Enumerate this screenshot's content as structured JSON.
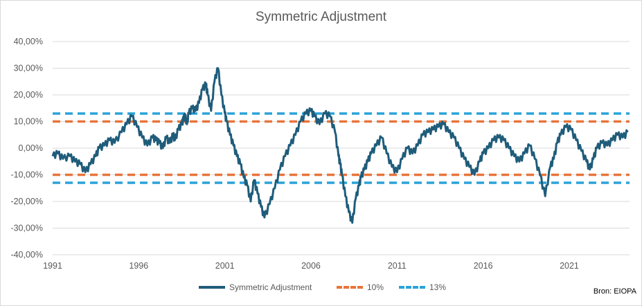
{
  "chart_data": {
    "type": "line",
    "title": "Symmetric Adjustment",
    "source": "Bron: EIOPA",
    "xlim": [
      1991,
      2024.5
    ],
    "ylim": [
      -40,
      40
    ],
    "y_tick_labels": [
      "40,00%",
      "30,00%",
      "20,00%",
      "10,00%",
      "0,00%",
      "-10,00%",
      "-20,00%",
      "-30,00%",
      "-40,00%"
    ],
    "y_ticks": [
      40,
      30,
      20,
      10,
      0,
      -10,
      -20,
      -30,
      -40
    ],
    "x_tick_labels": [
      "1991",
      "1996",
      "2001",
      "2006",
      "2011",
      "2016",
      "2021"
    ],
    "x_ticks": [
      1991,
      1996,
      2001,
      2006,
      2011,
      2016,
      2021
    ],
    "grid": true,
    "legend_position": "bottom",
    "series": [
      {
        "name": "Symmetric Adjustment",
        "color": "#1f5c7a",
        "style": "solid",
        "x": [
          1991.0,
          1991.3,
          1991.6,
          1992.0,
          1992.3,
          1992.6,
          1992.9,
          1993.2,
          1993.5,
          1993.7,
          1994.0,
          1994.3,
          1994.6,
          1995.0,
          1995.3,
          1995.6,
          1995.9,
          1996.2,
          1996.5,
          1996.8,
          1997.0,
          1997.2,
          1997.4,
          1997.6,
          1997.8,
          1998.0,
          1998.1,
          1998.3,
          1998.5,
          1998.6,
          1998.7,
          1998.8,
          1998.9,
          1999.1,
          1999.3,
          1999.5,
          1999.7,
          1999.9,
          2000.0,
          2000.2,
          2000.4,
          2000.6,
          2000.8,
          2001.0,
          2001.1,
          2001.3,
          2001.5,
          2001.7,
          2001.9,
          2002.1,
          2002.3,
          2002.5,
          2002.7,
          2002.9,
          2003.1,
          2003.3,
          2003.6,
          2003.9,
          2004.2,
          2004.5,
          2004.8,
          2005.1,
          2005.4,
          2005.7,
          2006.0,
          2006.2,
          2006.5,
          2006.8,
          2007.1,
          2007.4,
          2007.6,
          2007.7,
          2007.8,
          2008.0,
          2008.2,
          2008.4,
          2008.6,
          2008.8,
          2008.9,
          2009.1,
          2009.3,
          2009.5,
          2009.8,
          2010.1,
          2010.4,
          2010.7,
          2011.0,
          2011.3,
          2011.6,
          2011.9,
          2012.2,
          2012.5,
          2012.8,
          2013.1,
          2013.4,
          2013.7,
          2014.0,
          2014.3,
          2014.6,
          2014.9,
          2015.2,
          2015.5,
          2015.8,
          2016.0,
          2016.3,
          2016.6,
          2016.9,
          2017.2,
          2017.5,
          2017.8,
          2018.1,
          2018.4,
          2018.7,
          2019.0,
          2019.3,
          2019.6,
          2019.9,
          2020.1,
          2020.3,
          2020.5,
          2020.8,
          2021.1,
          2021.4,
          2021.7,
          2022.0,
          2022.2,
          2022.4,
          2022.6,
          2022.9,
          2023.2,
          2023.5,
          2023.8,
          2024.1,
          2024.4
        ],
        "y": [
          -3,
          -2,
          -4,
          -3,
          -5,
          -6,
          -9,
          -6,
          -3,
          0,
          1,
          3,
          2,
          6,
          9,
          12,
          8,
          4,
          1,
          4,
          3,
          2,
          0,
          4,
          2,
          5,
          3,
          7,
          9,
          11,
          12,
          9,
          13,
          15,
          14,
          17,
          22,
          24,
          20,
          14,
          25,
          30,
          20,
          13,
          10,
          5,
          1,
          -3,
          -6,
          -11,
          -14,
          -20,
          -12,
          -17,
          -22,
          -26,
          -21,
          -15,
          -8,
          -3,
          1,
          5,
          10,
          13,
          14,
          12,
          9,
          13,
          12,
          6,
          -3,
          -6,
          -10,
          -18,
          -24,
          -28,
          -19,
          -14,
          -11,
          -8,
          -5,
          -2,
          1,
          4,
          -2,
          -7,
          -9,
          -4,
          0,
          -2,
          1,
          5,
          6,
          7,
          8,
          9,
          6,
          4,
          0,
          -4,
          -7,
          -10,
          -5,
          -2,
          0,
          3,
          4,
          3,
          0,
          -3,
          -5,
          -2,
          1,
          -4,
          -10,
          -18,
          -7,
          -4,
          2,
          5,
          8,
          7,
          3,
          -1,
          -5,
          -8,
          -4,
          0,
          2,
          1,
          3,
          5,
          4,
          6
        ]
      },
      {
        "name": "10%",
        "color": "#e8743b",
        "style": "dashed",
        "levels": [
          10,
          -10
        ]
      },
      {
        "name": "13%",
        "color": "#2aa3d9",
        "style": "dashed",
        "levels": [
          13,
          -13
        ]
      }
    ]
  }
}
